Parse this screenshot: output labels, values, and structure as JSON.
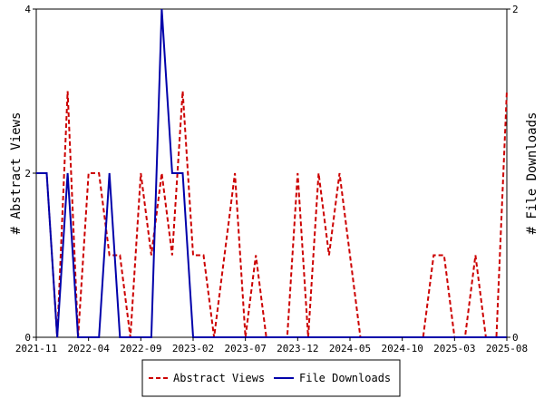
{
  "chart_data": {
    "type": "line",
    "ylabel_left": "# Abstract Views",
    "ylabel_right": "# File Downloads",
    "x_ticks": [
      "2021-11",
      "2022-04",
      "2022-09",
      "2023-02",
      "2023-07",
      "2023-12",
      "2024-05",
      "2024-10",
      "2025-03",
      "2025-08"
    ],
    "xlim": [
      "2021-11",
      "2025-08"
    ],
    "ylim_left": [
      0,
      4
    ],
    "ylim_right": [
      0,
      2
    ],
    "y_ticks_left": [
      0,
      2,
      4
    ],
    "y_ticks_right": [
      0,
      2
    ],
    "legend_position": "bottom-center",
    "grid": false,
    "months": [
      "2021-11",
      "2021-12",
      "2022-01",
      "2022-02",
      "2022-03",
      "2022-04",
      "2022-05",
      "2022-06",
      "2022-07",
      "2022-08",
      "2022-09",
      "2022-10",
      "2022-11",
      "2022-12",
      "2023-01",
      "2023-02",
      "2023-03",
      "2023-04",
      "2023-05",
      "2023-06",
      "2023-07",
      "2023-08",
      "2023-09",
      "2023-10",
      "2023-11",
      "2023-12",
      "2024-01",
      "2024-02",
      "2024-03",
      "2024-04",
      "2024-05",
      "2024-06",
      "2024-07",
      "2024-08",
      "2024-09",
      "2024-10",
      "2024-11",
      "2024-12",
      "2025-01",
      "2025-02",
      "2025-03",
      "2025-04",
      "2025-05",
      "2025-06",
      "2025-07",
      "2025-08"
    ],
    "series": [
      {
        "name": "Abstract Views",
        "axis": "left",
        "color": "#cc0000",
        "dash": "dashed",
        "values": [
          2,
          2,
          0,
          3,
          0,
          2,
          2,
          1,
          1,
          0,
          2,
          1,
          2,
          1,
          3,
          1,
          1,
          0,
          1,
          2,
          0,
          1,
          0,
          0,
          0,
          2,
          0,
          2,
          1,
          2,
          1,
          0,
          0,
          0,
          0,
          0,
          0,
          0,
          1,
          1,
          0,
          0,
          1,
          0,
          0,
          3
        ]
      },
      {
        "name": "File Downloads",
        "axis": "right",
        "color": "#0000aa",
        "dash": "solid",
        "values": [
          1,
          1,
          0,
          1,
          0,
          0,
          0,
          1,
          0,
          0,
          0,
          0,
          2,
          1,
          1,
          0,
          0,
          0,
          0,
          0,
          0,
          0,
          0,
          0,
          0,
          0,
          0,
          0,
          0,
          0,
          0,
          0,
          0,
          0,
          0,
          0,
          0,
          0,
          0,
          0,
          0,
          0,
          0,
          0,
          0,
          0
        ]
      }
    ]
  }
}
